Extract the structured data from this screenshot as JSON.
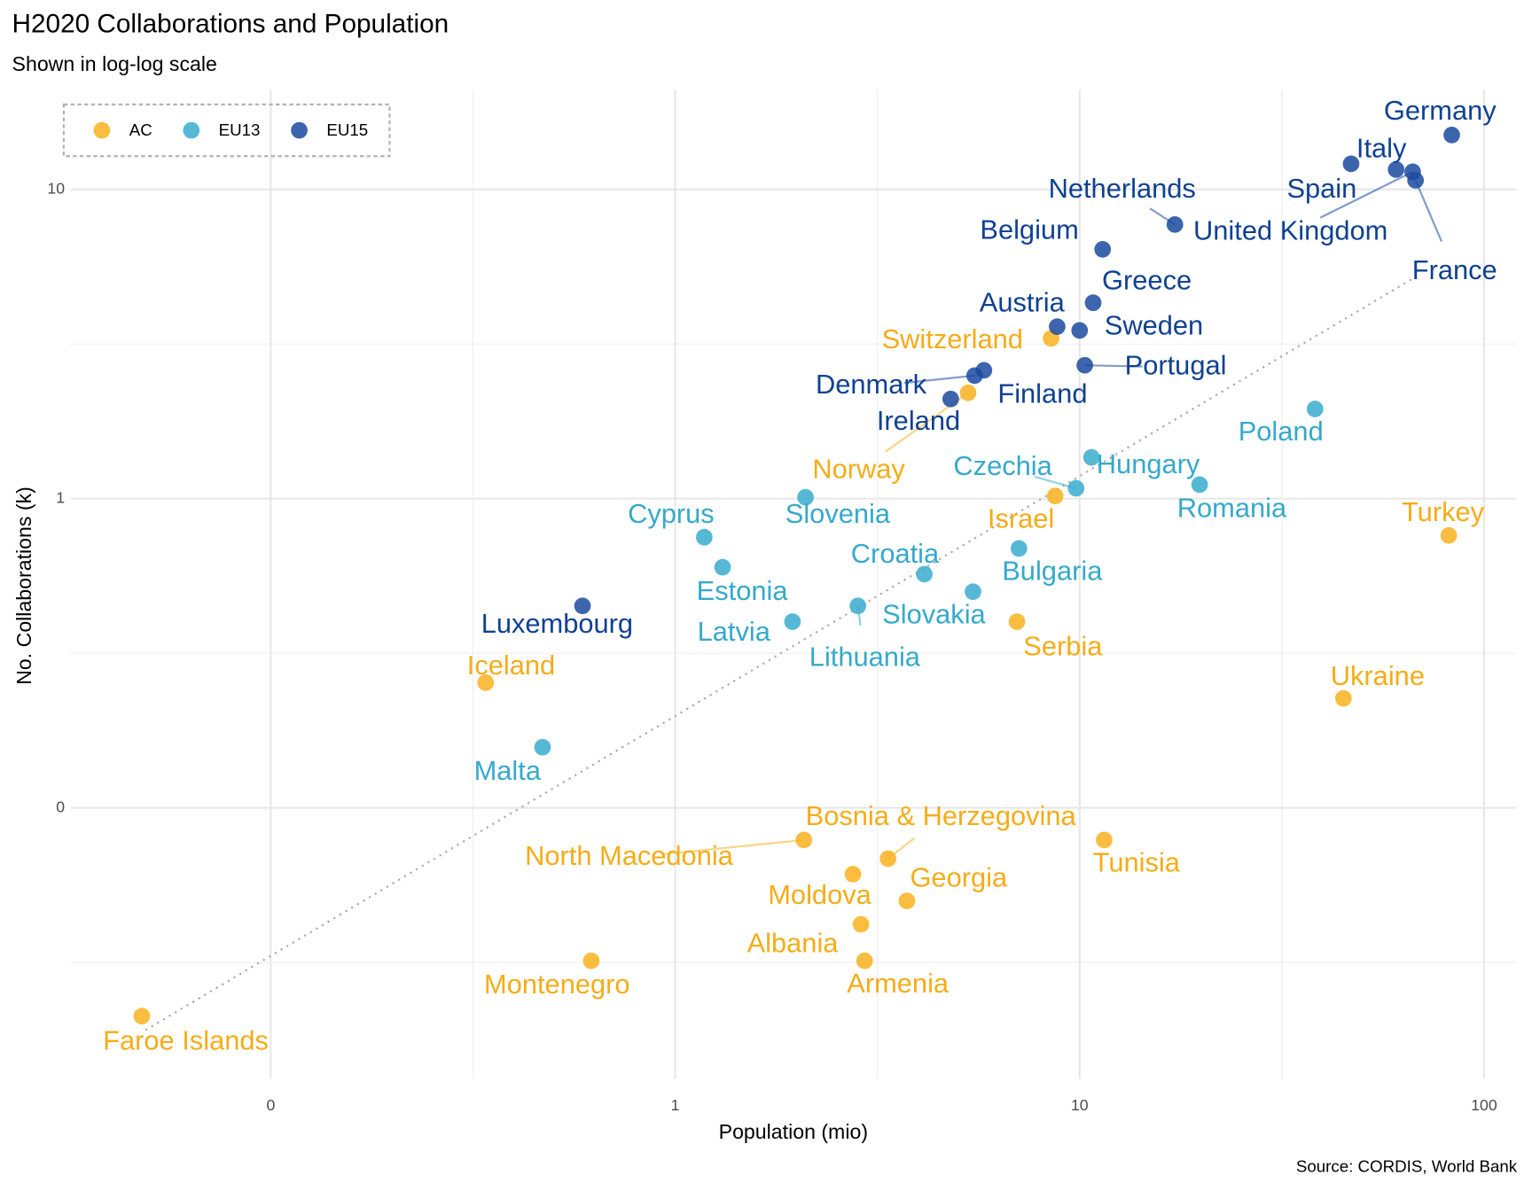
{
  "chart_data": {
    "type": "scatter",
    "title": "H2020 Collaborations and Population",
    "subtitle": "Shown in log-log scale",
    "x_label": "Population (mio)",
    "y_label": "No. Collaborations (k)",
    "caption": "Source: CORDIS, World Bank",
    "xscale": "log",
    "yscale": "log",
    "xlim": [
      0.032,
      120
    ],
    "ylim": [
      0.0133,
      21
    ],
    "xticks": [
      {
        "value": 0.1,
        "label": "0"
      },
      1,
      10,
      100
    ],
    "yticks": [
      {
        "value": 0.1,
        "label": "0"
      },
      1,
      10
    ],
    "grid": true,
    "legend": "top-left",
    "reference_line": {
      "x": [
        0.049,
        68
      ],
      "values": [
        0.0191,
        5.23
      ]
    },
    "series": [
      {
        "name": "AC",
        "color": "#f9b21f",
        "label_color": "#f5ac17",
        "labels": [
          "Switzerland",
          "Norway",
          "Israel",
          "Turkey",
          "Serbia",
          "Iceland",
          "Ukraine",
          "Bosnia & Herzegovina",
          "North Macedonia",
          "Tunisia",
          "Moldova",
          "Georgia",
          "Albania",
          "Montenegro",
          "Armenia",
          "Faroe Islands"
        ],
        "x": [
          8.5,
          5.3,
          8.7,
          81.8,
          7.0,
          0.34,
          44.9,
          3.36,
          2.08,
          11.5,
          2.75,
          3.74,
          2.88,
          0.62,
          2.94,
          0.048
        ],
        "values": [
          3.3,
          2.2,
          1.02,
          0.76,
          0.4,
          0.254,
          0.226,
          0.0685,
          0.0787,
          0.0787,
          0.061,
          0.05,
          0.042,
          0.032,
          0.032,
          0.0212
        ]
      },
      {
        "name": "EU13",
        "color": "#3aaccf",
        "label_color": "#35a9cb",
        "labels": [
          "Poland",
          "Hungary",
          "Czechia",
          "Romania",
          "Slovenia",
          "Cyprus",
          "Estonia",
          "Croatia",
          "Bulgaria",
          "Slovakia",
          "Lithuania",
          "Latvia",
          "Malta"
        ],
        "x": [
          38.2,
          10.7,
          9.8,
          19.8,
          2.1,
          1.18,
          1.31,
          4.13,
          7.08,
          5.45,
          2.83,
          1.95,
          0.47
        ],
        "values": [
          1.95,
          1.36,
          1.08,
          1.11,
          1.01,
          0.75,
          0.6,
          0.57,
          0.69,
          0.5,
          0.45,
          0.4,
          0.157
        ]
      },
      {
        "name": "EU15",
        "color": "#1a4aa0",
        "label_color": "#0f4192",
        "labels": [
          "Germany",
          "Italy",
          "Spain",
          "United Kingdom",
          "France",
          "Netherlands",
          "Belgium",
          "Greece",
          "Austria",
          "Sweden",
          "Portugal",
          "Denmark",
          "Finland",
          "Ireland",
          "Luxembourg"
        ],
        "x": [
          83.2,
          60.6,
          46.9,
          66.6,
          67.7,
          17.2,
          11.4,
          10.8,
          8.8,
          10.0,
          10.3,
          5.5,
          5.8,
          4.8,
          0.59
        ],
        "values": [
          15.0,
          11.6,
          12.1,
          11.4,
          10.7,
          7.7,
          6.4,
          4.3,
          3.6,
          3.5,
          2.7,
          2.5,
          2.6,
          2.1,
          0.45
        ]
      }
    ]
  }
}
